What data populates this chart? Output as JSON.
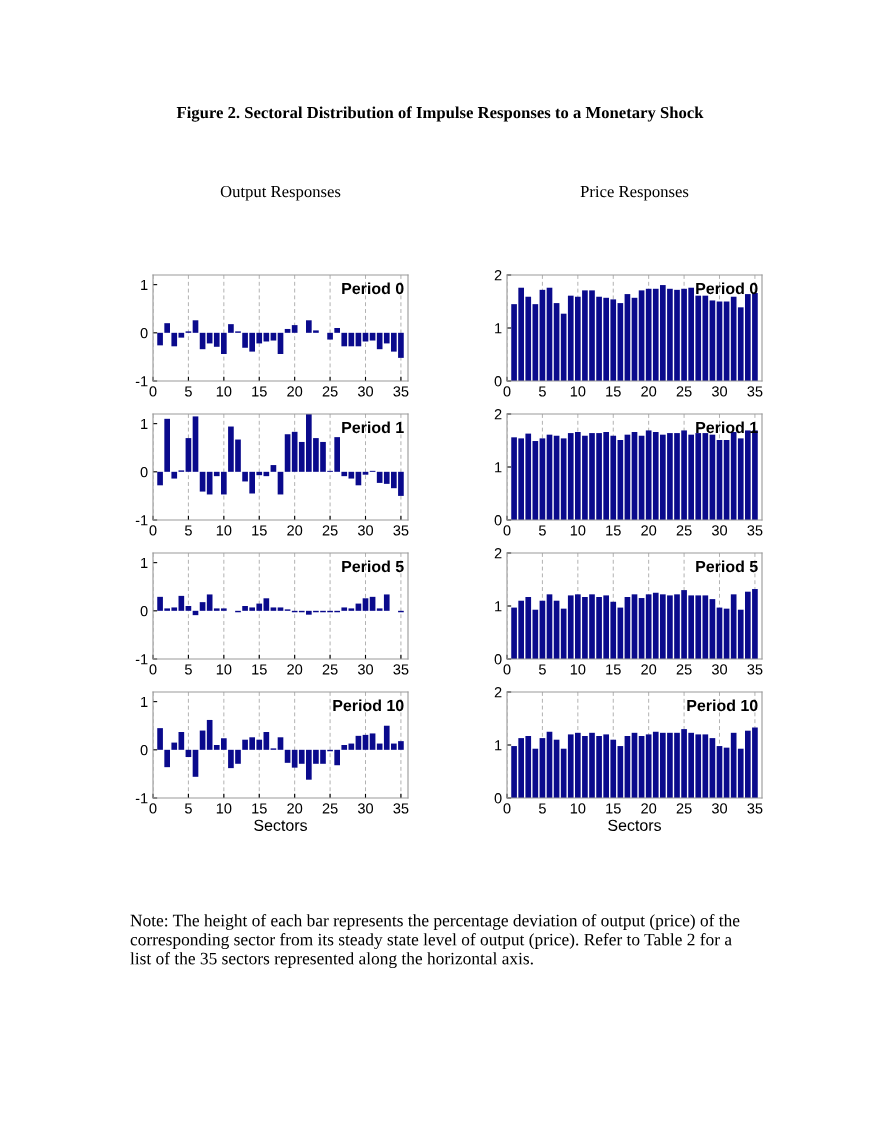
{
  "chart_data": [
    {
      "type": "bar",
      "title": "Period 0",
      "subtitle": "Output Responses",
      "annotations": [
        "Figure 2. Sectoral Distribution of Impulse Responses to a Monetary Shock",
        "Note: The height of each bar represents the percentage deviation of output (price) of the corresponding sector from its steady state level of output (price). Refer to Table 2 for a list of the 35 sectors represented along the horizontal axis."
      ],
      "x": [
        1,
        2,
        3,
        4,
        5,
        6,
        7,
        8,
        9,
        10,
        11,
        12,
        13,
        14,
        15,
        16,
        17,
        18,
        19,
        20,
        21,
        22,
        23,
        24,
        25,
        26,
        27,
        28,
        29,
        30,
        31,
        32,
        33,
        34,
        35
      ],
      "series": [
        {
          "color": "#0a0a8c",
          "values": [
            -0.26,
            0.2,
            -0.28,
            -0.1,
            0.03,
            0.26,
            -0.34,
            -0.22,
            -0.29,
            -0.44,
            0.18,
            0.03,
            -0.31,
            -0.39,
            -0.22,
            -0.18,
            -0.16,
            -0.44,
            0.08,
            0.16,
            0,
            0.26,
            0.05,
            0,
            -0.14,
            0.1,
            -0.28,
            -0.28,
            -0.28,
            -0.18,
            -0.16,
            -0.34,
            -0.22,
            -0.39,
            -0.52
          ]
        }
      ],
      "xlim": [
        0,
        36
      ],
      "ylim": [
        -1,
        1.2
      ],
      "xticks": [
        0,
        5,
        10,
        15,
        20,
        25,
        30,
        35
      ],
      "yticks": [
        -1,
        0,
        1
      ],
      "grid": "x"
    },
    {
      "type": "bar",
      "title": "Period 0",
      "subtitle": "Price Responses",
      "x": [
        1,
        2,
        3,
        4,
        5,
        6,
        7,
        8,
        9,
        10,
        11,
        12,
        13,
        14,
        15,
        16,
        17,
        18,
        19,
        20,
        21,
        22,
        23,
        24,
        25,
        26,
        27,
        28,
        29,
        30,
        31,
        32,
        33,
        34,
        35
      ],
      "series": [
        {
          "color": "#0a0a8c",
          "values": [
            1.45,
            1.76,
            1.59,
            1.45,
            1.72,
            1.76,
            1.47,
            1.27,
            1.61,
            1.59,
            1.71,
            1.71,
            1.59,
            1.57,
            1.54,
            1.47,
            1.64,
            1.57,
            1.71,
            1.74,
            1.74,
            1.81,
            1.74,
            1.72,
            1.74,
            1.76,
            1.61,
            1.61,
            1.52,
            1.5,
            1.5,
            1.59,
            1.39,
            1.64,
            1.66
          ]
        }
      ],
      "xlim": [
        0,
        36
      ],
      "ylim": [
        0,
        2
      ],
      "xticks": [
        0,
        5,
        10,
        15,
        20,
        25,
        30,
        35
      ],
      "yticks": [
        0,
        1,
        2
      ],
      "grid": "x"
    },
    {
      "type": "bar",
      "title": "Period 1",
      "x": [
        1,
        2,
        3,
        4,
        5,
        6,
        7,
        8,
        9,
        10,
        11,
        12,
        13,
        14,
        15,
        16,
        17,
        18,
        19,
        20,
        21,
        22,
        23,
        24,
        25,
        26,
        27,
        28,
        29,
        30,
        31,
        32,
        33,
        34,
        35
      ],
      "series": [
        {
          "color": "#0a0a8c",
          "values": [
            -0.28,
            1.1,
            -0.14,
            0.03,
            0.7,
            1.15,
            -0.41,
            -0.47,
            -0.09,
            -0.47,
            0.94,
            0.67,
            -0.2,
            -0.45,
            -0.07,
            -0.09,
            0.14,
            -0.47,
            0.78,
            0.83,
            0.62,
            1.2,
            0.7,
            0.62,
            0.02,
            0.72,
            -0.09,
            -0.14,
            -0.28,
            -0.06,
            0.02,
            -0.23,
            -0.25,
            -0.34,
            -0.5
          ]
        }
      ],
      "xlim": [
        0,
        36
      ],
      "ylim": [
        -1,
        1.2
      ],
      "xticks": [
        0,
        5,
        10,
        15,
        20,
        25,
        30,
        35
      ],
      "yticks": [
        -1,
        0,
        1
      ],
      "grid": "x"
    },
    {
      "type": "bar",
      "title": "Period 1",
      "x": [
        1,
        2,
        3,
        4,
        5,
        6,
        7,
        8,
        9,
        10,
        11,
        12,
        13,
        14,
        15,
        16,
        17,
        18,
        19,
        20,
        21,
        22,
        23,
        24,
        25,
        26,
        27,
        28,
        29,
        30,
        31,
        32,
        33,
        34,
        35
      ],
      "series": [
        {
          "color": "#0a0a8c",
          "values": [
            1.56,
            1.54,
            1.63,
            1.49,
            1.54,
            1.61,
            1.59,
            1.54,
            1.64,
            1.66,
            1.59,
            1.64,
            1.64,
            1.66,
            1.59,
            1.51,
            1.61,
            1.66,
            1.59,
            1.69,
            1.66,
            1.61,
            1.64,
            1.64,
            1.69,
            1.61,
            1.64,
            1.64,
            1.61,
            1.51,
            1.51,
            1.66,
            1.54,
            1.69,
            1.69
          ]
        }
      ],
      "xlim": [
        0,
        36
      ],
      "ylim": [
        0,
        2
      ],
      "xticks": [
        0,
        5,
        10,
        15,
        20,
        25,
        30,
        35
      ],
      "yticks": [
        0,
        1,
        2
      ],
      "grid": "x"
    },
    {
      "type": "bar",
      "title": "Period 5",
      "x": [
        1,
        2,
        3,
        4,
        5,
        6,
        7,
        8,
        9,
        10,
        11,
        12,
        13,
        14,
        15,
        16,
        17,
        18,
        19,
        20,
        21,
        22,
        23,
        24,
        25,
        26,
        27,
        28,
        29,
        30,
        31,
        32,
        33,
        34,
        35
      ],
      "series": [
        {
          "color": "#0a0a8c",
          "values": [
            0.29,
            0.05,
            0.07,
            0.31,
            0.1,
            -0.09,
            0.18,
            0.34,
            0.05,
            0.05,
            0,
            -0.03,
            0.1,
            0.07,
            0.15,
            0.26,
            0.07,
            0.07,
            0.03,
            -0.03,
            -0.03,
            -0.08,
            -0.03,
            -0.03,
            -0.03,
            -0.03,
            0.07,
            0.05,
            0.15,
            0.26,
            0.29,
            0.05,
            0.34,
            0,
            -0.03
          ]
        }
      ],
      "xlim": [
        0,
        36
      ],
      "ylim": [
        -1,
        1.2
      ],
      "xticks": [
        0,
        5,
        10,
        15,
        20,
        25,
        30,
        35
      ],
      "yticks": [
        -1,
        0,
        1
      ],
      "grid": "x"
    },
    {
      "type": "bar",
      "title": "Period 5",
      "x": [
        1,
        2,
        3,
        4,
        5,
        6,
        7,
        8,
        9,
        10,
        11,
        12,
        13,
        14,
        15,
        16,
        17,
        18,
        19,
        20,
        21,
        22,
        23,
        24,
        25,
        26,
        27,
        28,
        29,
        30,
        31,
        32,
        33,
        34,
        35
      ],
      "series": [
        {
          "color": "#0a0a8c",
          "values": [
            0.97,
            1.1,
            1.17,
            0.93,
            1.1,
            1.22,
            1.1,
            0.95,
            1.2,
            1.22,
            1.17,
            1.22,
            1.17,
            1.2,
            1.08,
            0.97,
            1.17,
            1.22,
            1.15,
            1.22,
            1.25,
            1.22,
            1.2,
            1.22,
            1.3,
            1.2,
            1.2,
            1.2,
            1.13,
            0.97,
            0.95,
            1.22,
            0.93,
            1.27,
            1.32
          ]
        }
      ],
      "xlim": [
        0,
        36
      ],
      "ylim": [
        0,
        2
      ],
      "xticks": [
        0,
        5,
        10,
        15,
        20,
        25,
        30,
        35
      ],
      "yticks": [
        0,
        1,
        2
      ],
      "grid": "x"
    },
    {
      "type": "bar",
      "title": "Period 10",
      "xlabel": "Sectors",
      "x": [
        1,
        2,
        3,
        4,
        5,
        6,
        7,
        8,
        9,
        10,
        11,
        12,
        13,
        14,
        15,
        16,
        17,
        18,
        19,
        20,
        21,
        22,
        23,
        24,
        25,
        26,
        27,
        28,
        29,
        30,
        31,
        32,
        33,
        34,
        35
      ],
      "series": [
        {
          "color": "#0a0a8c",
          "values": [
            0.45,
            -0.36,
            0.15,
            0.37,
            -0.15,
            -0.56,
            0.4,
            0.62,
            0.1,
            0.24,
            -0.38,
            -0.29,
            0.21,
            0.26,
            0.21,
            0.37,
            0.03,
            0.26,
            -0.27,
            -0.37,
            -0.29,
            -0.62,
            -0.29,
            -0.29,
            -0.03,
            -0.32,
            0.1,
            0.13,
            0.29,
            0.31,
            0.34,
            0.13,
            0.5,
            0.13,
            0.18
          ]
        }
      ],
      "xlim": [
        0,
        36
      ],
      "ylim": [
        -1,
        1.2
      ],
      "xticks": [
        0,
        5,
        10,
        15,
        20,
        25,
        30,
        35
      ],
      "yticks": [
        -1,
        0,
        1
      ],
      "grid": "x"
    },
    {
      "type": "bar",
      "title": "Period 10",
      "xlabel": "Sectors",
      "x": [
        1,
        2,
        3,
        4,
        5,
        6,
        7,
        8,
        9,
        10,
        11,
        12,
        13,
        14,
        15,
        16,
        17,
        18,
        19,
        20,
        21,
        22,
        23,
        24,
        25,
        26,
        27,
        28,
        29,
        30,
        31,
        32,
        33,
        34,
        35
      ],
      "series": [
        {
          "color": "#0a0a8c",
          "values": [
            0.98,
            1.13,
            1.17,
            0.93,
            1.13,
            1.25,
            1.1,
            0.93,
            1.2,
            1.23,
            1.17,
            1.23,
            1.17,
            1.2,
            1.1,
            0.98,
            1.17,
            1.23,
            1.17,
            1.2,
            1.25,
            1.23,
            1.23,
            1.23,
            1.3,
            1.23,
            1.2,
            1.2,
            1.13,
            0.98,
            0.95,
            1.23,
            0.93,
            1.27,
            1.33
          ]
        }
      ],
      "xlim": [
        0,
        36
      ],
      "ylim": [
        0,
        2
      ],
      "xticks": [
        0,
        5,
        10,
        15,
        20,
        25,
        30,
        35
      ],
      "yticks": [
        0,
        1,
        2
      ],
      "grid": "x"
    }
  ]
}
